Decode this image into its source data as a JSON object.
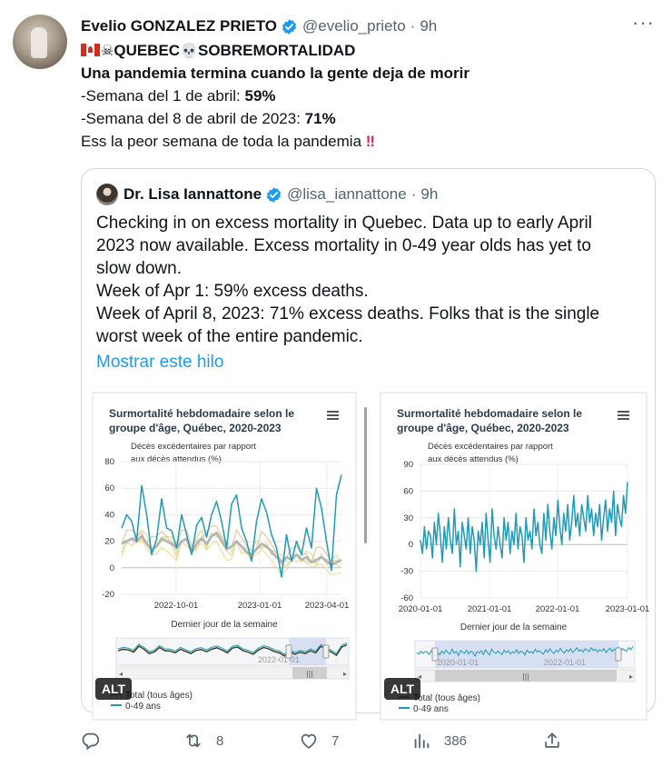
{
  "tweet": {
    "author_name": "Evelio GONZALEZ PRIETO",
    "handle": "@evelio_prieto",
    "separator": "·",
    "time": "9h",
    "line1_text": "QUEBEC",
    "line1_text2": "SOBREMORTALIDAD",
    "line2": "Una pandemia termina cuando la gente deja de morir",
    "line3_prefix": "-Semana del 1 de abril: ",
    "line3_value": "59%",
    "line4_prefix": "-Semana del 8 de abril de 2023: ",
    "line4_value": "71%",
    "line5": "Ess la peor semana de toda la pandemia ",
    "emoji_bang": "‼"
  },
  "quote": {
    "author_name": "Dr. Lisa Iannattone",
    "handle": "@lisa_iannattone",
    "separator": "·",
    "time": "9h",
    "lines": [
      "Checking in on excess mortality in Quebec. Data up to early April",
      "2023 now available. Excess mortality in 0-49 year olds has yet to",
      "slow down.",
      "Week of Apr 1: 59% excess deaths.",
      "Week of April 8, 2023: 71% excess deaths. Folks that is the single",
      "worst week of the entire pandemic."
    ],
    "show_thread": "Mostrar este hilo"
  },
  "chart_data": [
    {
      "type": "line",
      "title": "Surmortalité hebdomadaire selon le groupe d'âge, Québec, 2020-2023",
      "title_lines": [
        "Surmortalité hebdomadaire selon le",
        "groupe d'âge, Québec, 2020-2023"
      ],
      "ylabel_lines": [
        "Décès excédentaires par rapport",
        "aux décès attendus (%)"
      ],
      "xlabel": "Dernier jour de la semaine",
      "yticks": [
        "80",
        "60",
        "40",
        "20",
        "0",
        "-20"
      ],
      "ylim": [
        -20,
        80
      ],
      "xticks": [
        "2022-10-01",
        "2023-01-01",
        "2023-04-01"
      ],
      "navigator_label": "2022-01-01",
      "legend": [
        "Total (tous âges)",
        "0-49 ans"
      ],
      "series": [
        {
          "name": "0-49 ans",
          "color": "#1f9bb5",
          "values": [
            30,
            40,
            35,
            20,
            62,
            40,
            10,
            22,
            52,
            30,
            28,
            15,
            40,
            25,
            10,
            32,
            38,
            23,
            40,
            50,
            35,
            15,
            48,
            55,
            30,
            20,
            5,
            35,
            52,
            42,
            25,
            15,
            -7,
            25,
            5,
            20,
            10,
            30,
            15,
            60,
            45,
            20,
            -2,
            55,
            70
          ]
        },
        {
          "name": "Total (tous âges)",
          "color": "#b3b3b3",
          "values": [
            18,
            20,
            22,
            20,
            24,
            18,
            14,
            16,
            22,
            20,
            18,
            15,
            20,
            22,
            12,
            18,
            22,
            18,
            24,
            26,
            20,
            14,
            16,
            20,
            16,
            12,
            10,
            14,
            18,
            16,
            12,
            8,
            4,
            8,
            6,
            10,
            6,
            8,
            4,
            6,
            8,
            5,
            2,
            4,
            6
          ]
        }
      ]
    },
    {
      "type": "line",
      "title": "Surmortalité hebdomadaire selon le groupe d'âge, Québec, 2020-2023",
      "title_lines": [
        "Surmortalité hebdomadaire selon le",
        "groupe d'âge, Québec, 2020-2023"
      ],
      "ylabel_lines": [
        "Décès excédentaires par rapport",
        "aux décès attendus (%)"
      ],
      "xlabel": "Dernier jour de la semaine",
      "yticks": [
        "90",
        "60",
        "30",
        "0",
        "-30",
        "-60"
      ],
      "ylim": [
        -60,
        90
      ],
      "xticks": [
        "2020-01-01",
        "2021-01-01",
        "2022-01-01",
        "2023-01-01"
      ],
      "navigator_labels": [
        "2020-01-01",
        "2022-01-01"
      ],
      "legend": [
        "Total (tous âges)",
        "0-49 ans"
      ],
      "series": [
        {
          "name": "0-49 ans",
          "color": "#1f9bb5",
          "values": [
            5,
            -10,
            20,
            -5,
            15,
            10,
            -15,
            25,
            0,
            35,
            10,
            -20,
            20,
            -5,
            30,
            5,
            -10,
            40,
            0,
            15,
            -25,
            25,
            10,
            -5,
            30,
            -10,
            20,
            5,
            -30,
            15,
            0,
            25,
            -15,
            35,
            5,
            -20,
            40,
            10,
            -5,
            20,
            0,
            -15,
            30,
            5,
            25,
            -10,
            15,
            0,
            35,
            -5,
            20,
            10,
            -20,
            30,
            5,
            15,
            -5,
            40,
            10,
            25,
            0,
            -10,
            35,
            5,
            45,
            15,
            -5,
            30,
            10,
            50,
            20,
            0,
            35,
            15,
            45,
            5,
            25,
            55,
            20,
            35,
            10,
            45,
            30,
            15,
            55,
            25,
            40,
            10,
            35,
            20,
            45,
            5,
            30,
            50,
            15,
            40,
            25,
            60,
            10,
            45,
            30,
            20,
            55,
            35,
            70
          ]
        }
      ]
    }
  ],
  "alt_label": "ALT",
  "actions": {
    "replies": "",
    "retweets": "8",
    "likes": "7",
    "views": "386"
  }
}
